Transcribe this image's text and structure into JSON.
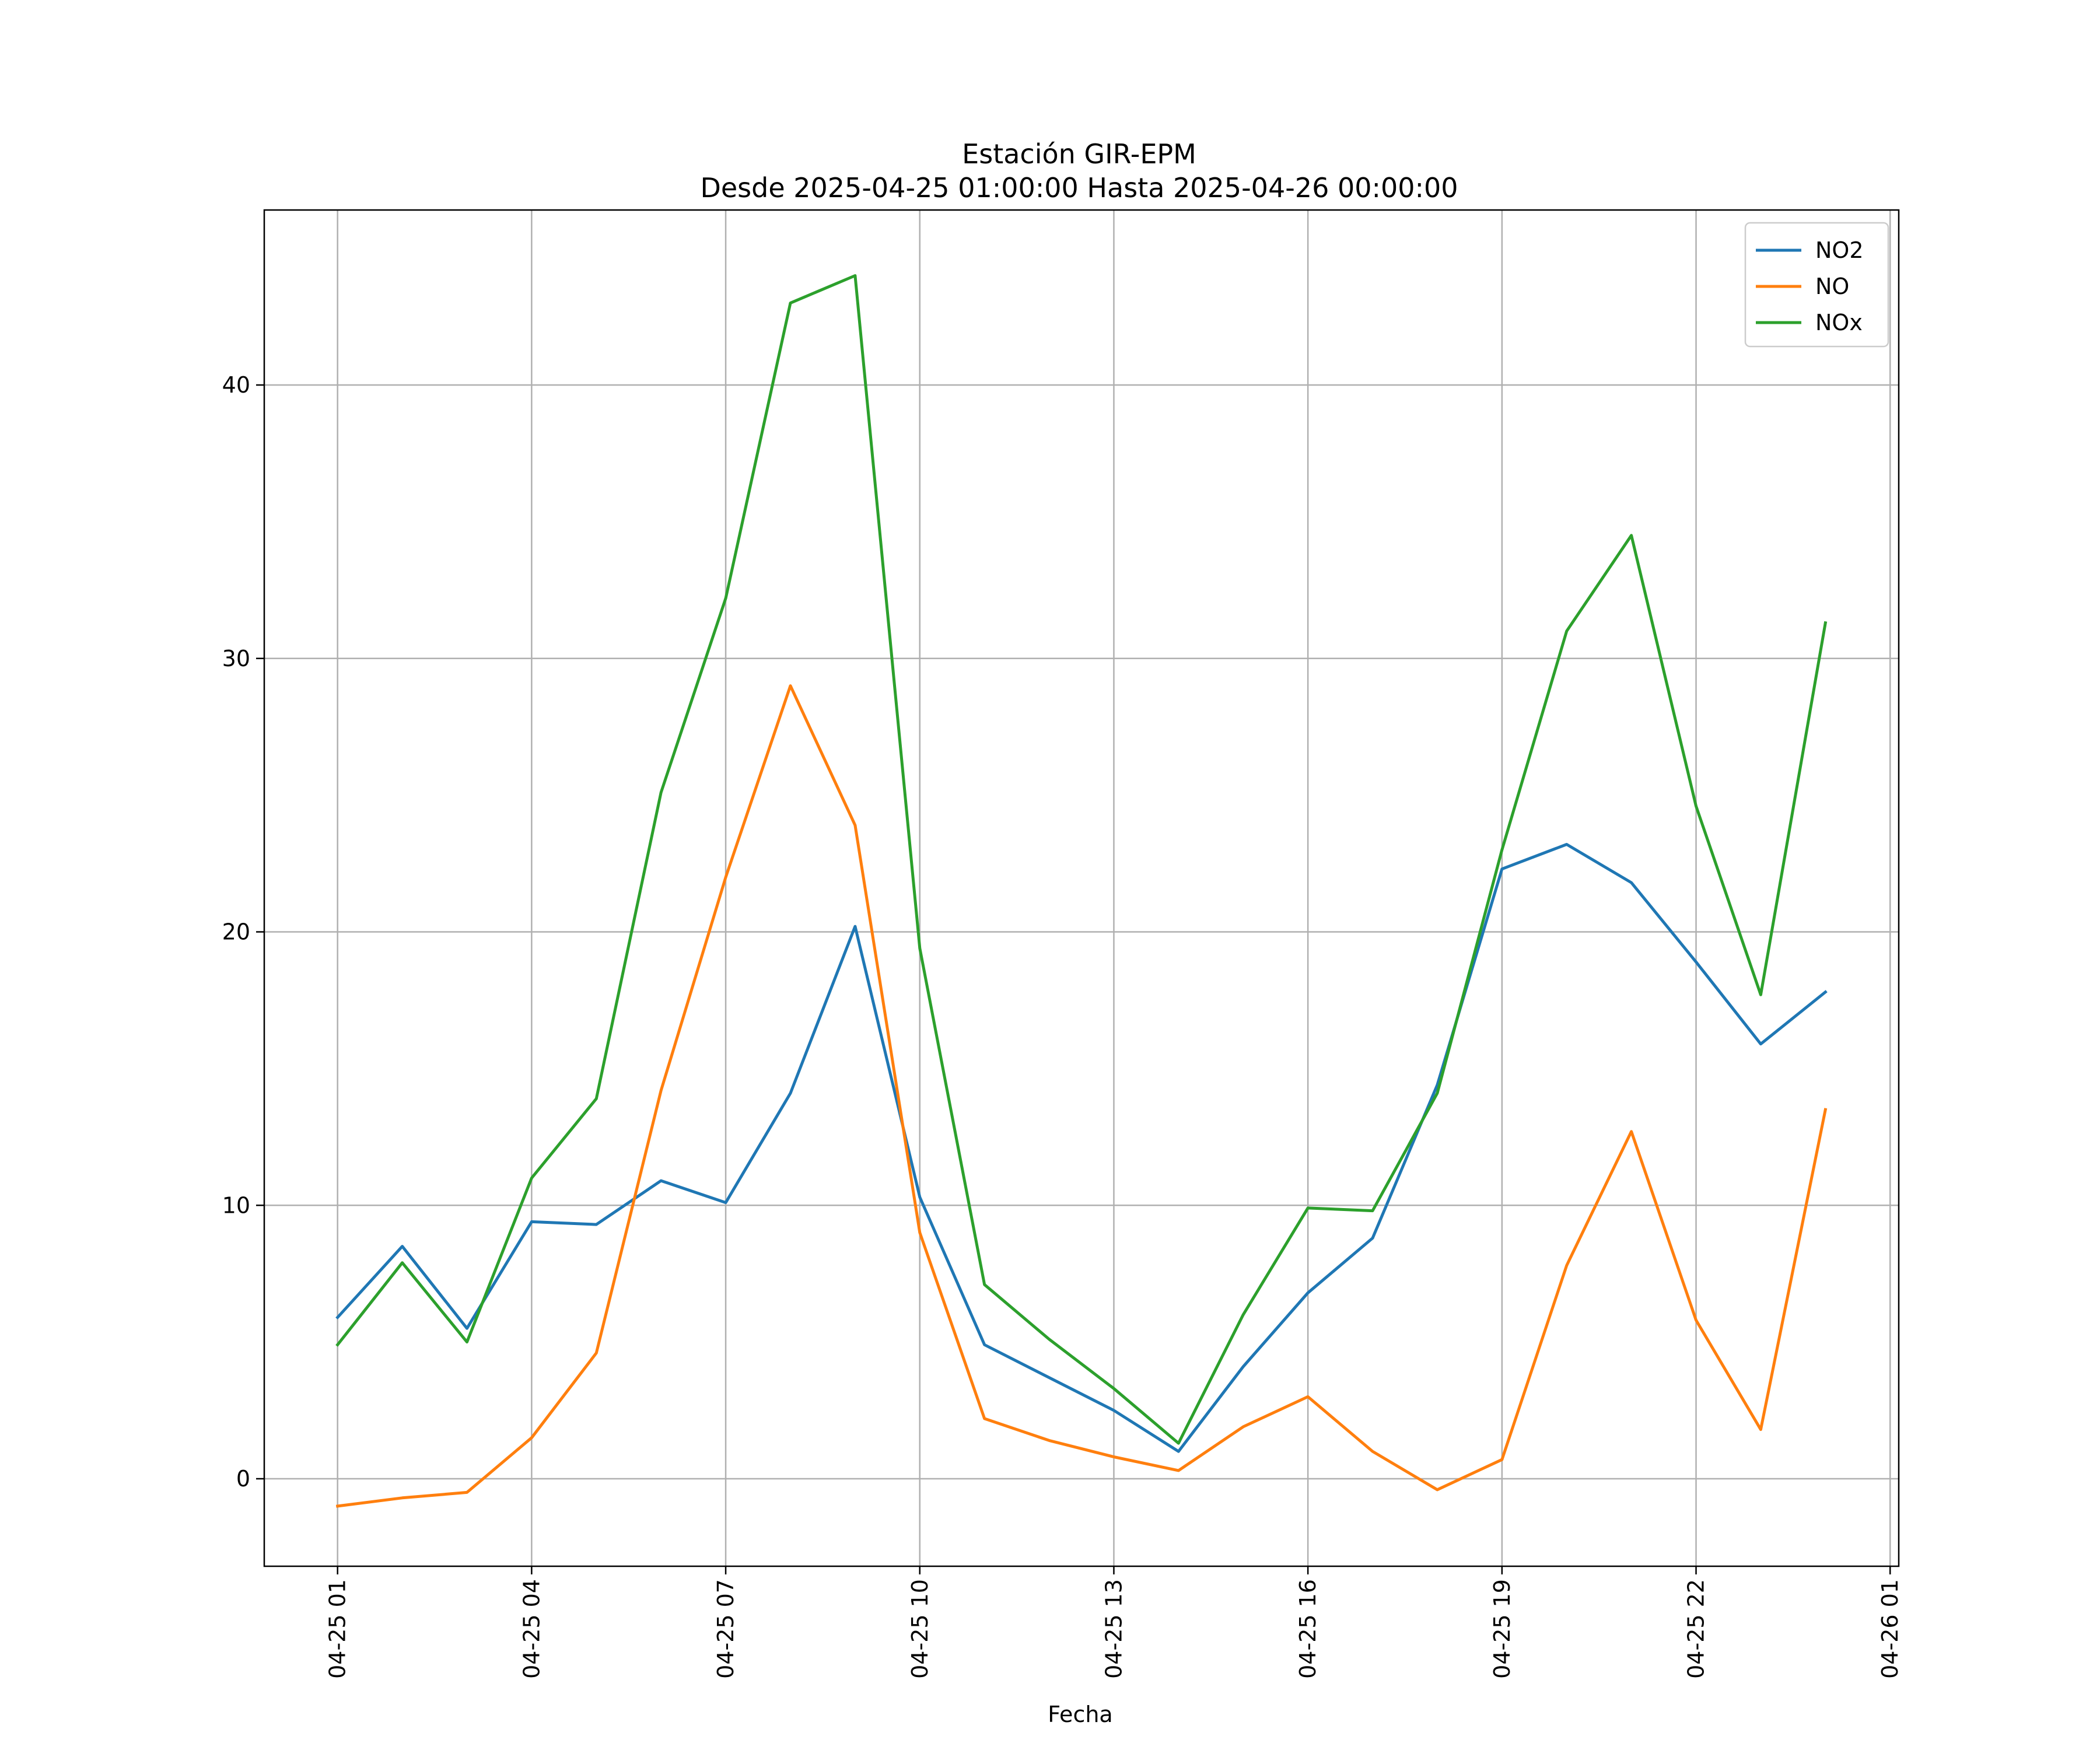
{
  "chart_data": {
    "type": "line",
    "title": "Estación GIR-EPM",
    "subtitle": "Desde 2025-04-25 01:00:00 Hasta 2025-04-26 00:00:00",
    "xlabel": "Fecha",
    "ylabel": "",
    "x": [
      "2025-04-25 01:00",
      "2025-04-25 02:00",
      "2025-04-25 03:00",
      "2025-04-25 04:00",
      "2025-04-25 05:00",
      "2025-04-25 06:00",
      "2025-04-25 07:00",
      "2025-04-25 08:00",
      "2025-04-25 09:00",
      "2025-04-25 10:00",
      "2025-04-25 11:00",
      "2025-04-25 12:00",
      "2025-04-25 13:00",
      "2025-04-25 14:00",
      "2025-04-25 15:00",
      "2025-04-25 16:00",
      "2025-04-25 17:00",
      "2025-04-25 18:00",
      "2025-04-25 19:00",
      "2025-04-25 20:00",
      "2025-04-25 21:00",
      "2025-04-25 22:00",
      "2025-04-25 23:00",
      "2025-04-26 00:00"
    ],
    "xlim": [
      "2025-04-24 23:52",
      "2025-04-26 01:08"
    ],
    "ylim": [
      -3.2,
      46.4
    ],
    "x_ticks": [
      {
        "x": "2025-04-25 01:00",
        "label": "04-25 01"
      },
      {
        "x": "2025-04-25 04:00",
        "label": "04-25 04"
      },
      {
        "x": "2025-04-25 07:00",
        "label": "04-25 07"
      },
      {
        "x": "2025-04-25 10:00",
        "label": "04-25 10"
      },
      {
        "x": "2025-04-25 13:00",
        "label": "04-25 13"
      },
      {
        "x": "2025-04-25 16:00",
        "label": "04-25 16"
      },
      {
        "x": "2025-04-25 19:00",
        "label": "04-25 19"
      },
      {
        "x": "2025-04-25 22:00",
        "label": "04-25 22"
      },
      {
        "x": "2025-04-26 01:00",
        "label": "04-26 01"
      }
    ],
    "y_ticks": [
      {
        "value": 0,
        "label": "0"
      },
      {
        "value": 10,
        "label": "10"
      },
      {
        "value": 20,
        "label": "20"
      },
      {
        "value": 30,
        "label": "30"
      },
      {
        "value": 40,
        "label": "40"
      }
    ],
    "grid": true,
    "legend_position": "top-right",
    "series": [
      {
        "name": "NO2",
        "color": "#1f77b4",
        "values": [
          5.9,
          8.5,
          5.5,
          9.4,
          9.3,
          10.9,
          10.1,
          14.1,
          20.2,
          10.3,
          4.9,
          3.7,
          2.5,
          1.0,
          4.1,
          6.8,
          8.8,
          14.4,
          22.3,
          23.2,
          21.8,
          18.9,
          15.9,
          17.8
        ]
      },
      {
        "name": "NO",
        "color": "#ff7f0e",
        "values": [
          -1.0,
          -0.7,
          -0.5,
          1.5,
          4.6,
          14.2,
          22.0,
          29.0,
          23.9,
          9.0,
          2.2,
          1.4,
          0.8,
          0.3,
          1.9,
          3.0,
          1.0,
          -0.4,
          0.7,
          7.8,
          12.7,
          5.8,
          1.8,
          13.5
        ]
      },
      {
        "name": "NOx",
        "color": "#2ca02c",
        "values": [
          4.9,
          7.9,
          5.0,
          11.0,
          13.9,
          25.1,
          32.2,
          43.0,
          44.0,
          19.4,
          7.1,
          5.1,
          3.3,
          1.3,
          6.0,
          9.9,
          9.8,
          14.1,
          23.0,
          31.0,
          34.5,
          24.6,
          17.7,
          31.3
        ]
      }
    ]
  }
}
